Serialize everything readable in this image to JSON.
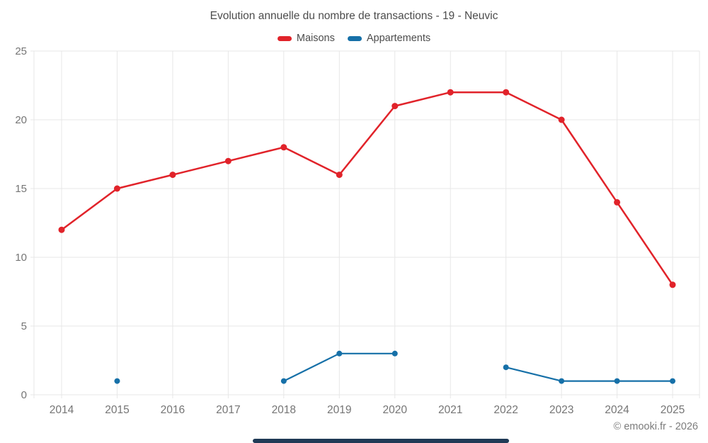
{
  "header": {
    "title": "Evolution annuelle du nombre de transactions - 19 - Neuvic"
  },
  "footer": {
    "copyright": "© emooki.fr - 2026"
  },
  "chart_data": {
    "type": "line",
    "title": "Evolution annuelle du nombre de transactions - 19 - Neuvic",
    "x": [
      2014,
      2015,
      2016,
      2017,
      2018,
      2019,
      2020,
      2021,
      2022,
      2023,
      2024,
      2025
    ],
    "series": [
      {
        "name": "Maisons",
        "color": "#e1232a",
        "marker_radius": 4.5,
        "line_width": 2.5,
        "values": [
          12,
          15,
          16,
          17,
          18,
          16,
          21,
          22,
          22,
          20,
          14,
          8
        ]
      },
      {
        "name": "Appartements",
        "color": "#1670a8",
        "marker_radius": 4,
        "line_width": 2.2,
        "values": [
          null,
          1,
          null,
          null,
          1,
          3,
          3,
          null,
          2,
          1,
          1,
          1
        ]
      }
    ],
    "ylim": [
      0,
      25
    ],
    "yticks": [
      0,
      5,
      10,
      15,
      20,
      25
    ],
    "grid": true,
    "legend_position": "top"
  },
  "colors": {
    "grid": "#e7e7e7",
    "tick_label": "#757575",
    "title": "#4c4c4c",
    "copyright": "#7c7c7c",
    "bottom_bar": "#203a56"
  }
}
